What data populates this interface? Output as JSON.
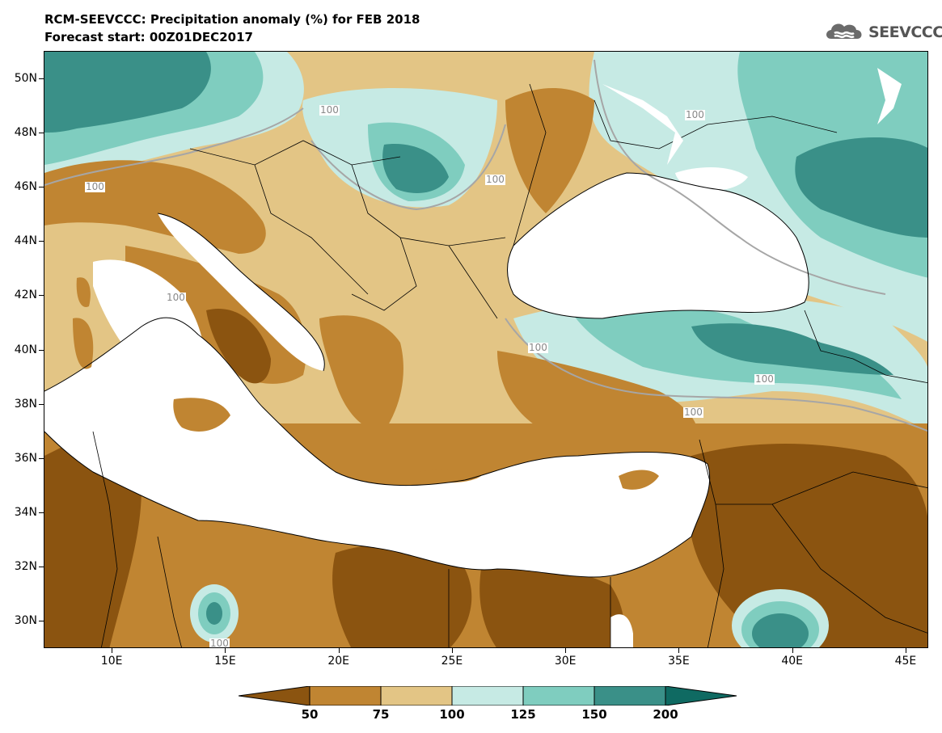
{
  "header": {
    "title": "RCM-SEEVCCC: Precipitation anomaly (%) for FEB 2018",
    "subtitle": "Forecast start: 00Z01DEC2017"
  },
  "logo": {
    "text": "SEEVCCC",
    "icon": "cloud-icon"
  },
  "map": {
    "lon_range": [
      7,
      46
    ],
    "lat_range": [
      29,
      51
    ],
    "lat_ticks": [
      "50N",
      "48N",
      "46N",
      "44N",
      "42N",
      "40N",
      "38N",
      "36N",
      "34N",
      "32N",
      "30N"
    ],
    "lon_ticks": [
      "10E",
      "15E",
      "20E",
      "25E",
      "30E",
      "35E",
      "40E",
      "45E"
    ],
    "contour_label": "100"
  },
  "colorbar": {
    "levels": [
      "50",
      "75",
      "100",
      "125",
      "150",
      "200"
    ],
    "colors": [
      "#8b5410",
      "#c08532",
      "#e3c585",
      "#c6eae4",
      "#7fcdbf",
      "#3a9088",
      "#0f6a62"
    ]
  }
}
